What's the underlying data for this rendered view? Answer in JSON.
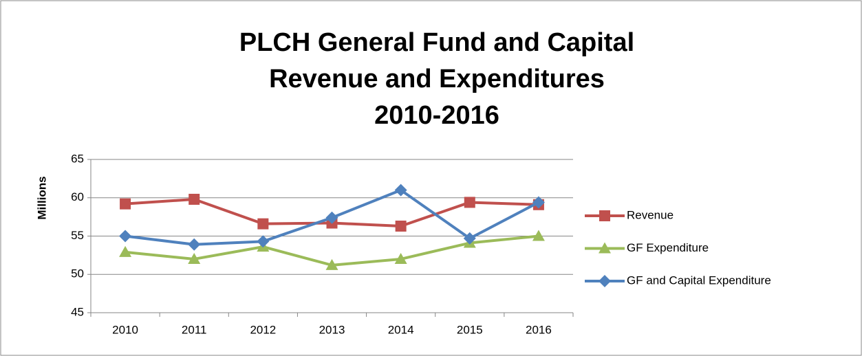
{
  "chart_data": {
    "type": "line",
    "title": [
      "PLCH General Fund and Capital",
      "Revenue and Expenditures",
      "2010-2016"
    ],
    "y_label": "Millions",
    "categories": [
      "2010",
      "2011",
      "2012",
      "2013",
      "2014",
      "2015",
      "2016"
    ],
    "series": [
      {
        "name": "Revenue",
        "color": "#c0504d",
        "marker": "square",
        "values": [
          59.2,
          59.8,
          56.6,
          56.7,
          56.3,
          59.4,
          59.1
        ]
      },
      {
        "name": "GF Expenditure",
        "color": "#9bbb59",
        "marker": "triangle",
        "values": [
          52.9,
          52.0,
          53.6,
          51.2,
          52.0,
          54.1,
          55.0
        ]
      },
      {
        "name": "GF and Capital Expenditure",
        "color": "#4f81bd",
        "marker": "diamond",
        "values": [
          55.0,
          53.9,
          54.3,
          57.4,
          61.0,
          54.7,
          59.4
        ]
      }
    ],
    "ylim": [
      45,
      65
    ],
    "yticks": [
      45,
      50,
      55,
      60,
      65
    ],
    "grid": true,
    "legend": "right"
  }
}
